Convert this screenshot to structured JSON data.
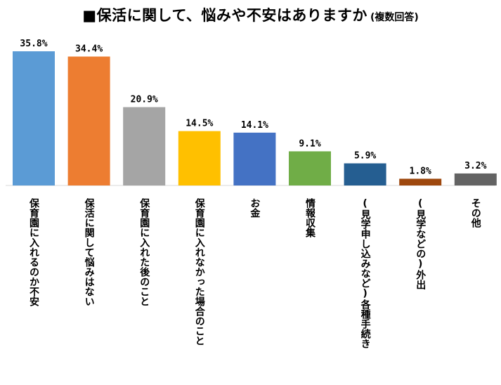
{
  "title": {
    "main": "■保活に関して、悩みや不安はありますか",
    "sub": "(複数回答)"
  },
  "chart_data": {
    "type": "bar",
    "title": "■保活に関して、悩みや不安はありますか (複数回答)",
    "categories": [
      "保育園に入れるのか不安",
      "保活に関して悩みはない",
      "保育園に入れた後のこと",
      "保育園に入れなかった場合のこと",
      "お金",
      "情報収集",
      "(見学申し込みなど)各種手続き",
      "(見学などの)外出",
      "その他"
    ],
    "values": [
      35.8,
      34.4,
      20.9,
      14.5,
      14.1,
      9.1,
      5.9,
      1.8,
      3.2
    ],
    "value_labels": [
      "35.8%",
      "34.4%",
      "20.9%",
      "14.5%",
      "14.1%",
      "9.1%",
      "5.9%",
      "1.8%",
      "3.2%"
    ],
    "colors": [
      "#5b9bd5",
      "#ed7d31",
      "#a5a5a5",
      "#ffc000",
      "#4472c4",
      "#70ad47",
      "#255e91",
      "#9e480e",
      "#636363"
    ],
    "ylim": [
      0,
      35.8
    ],
    "grid": false,
    "legend": "none"
  }
}
